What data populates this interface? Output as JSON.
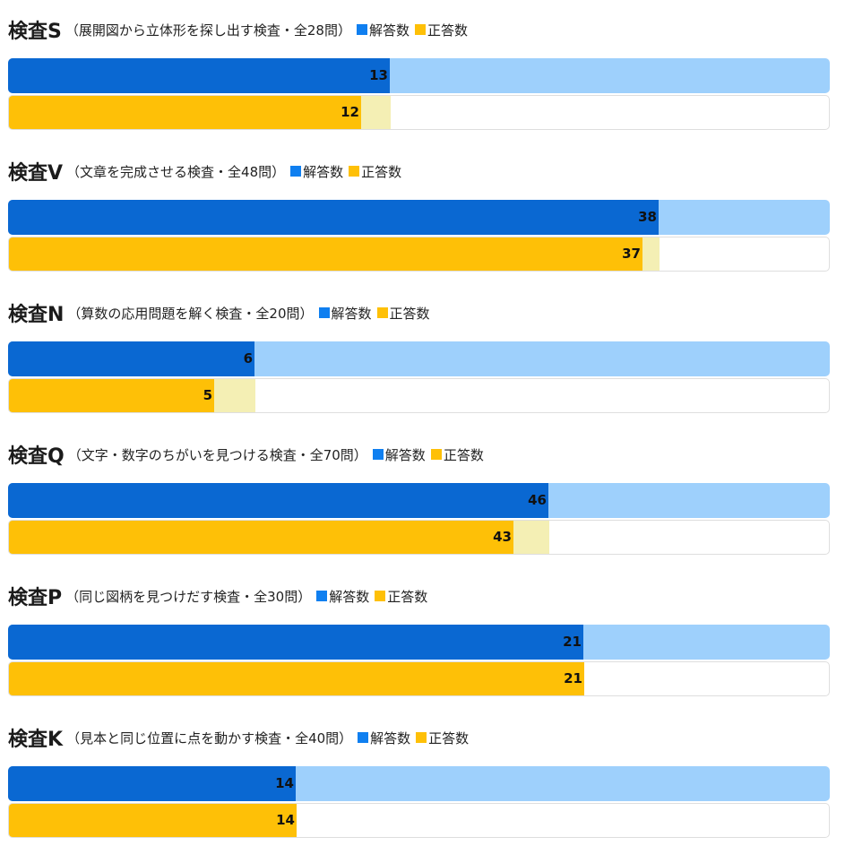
{
  "legend": {
    "answered": "解答数",
    "correct": "正答数"
  },
  "colors": {
    "answered": "#0a68d2",
    "answered_track": "#9ed0fc",
    "correct": "#fec007",
    "correct_gap": "#f4efb4",
    "legend_answered": "#0f7ff0",
    "legend_correct": "#fec007"
  },
  "chart_data": [
    {
      "type": "bar",
      "title": "検査S",
      "subtitle": "（展開図から立体形を探し出す検査・全28問）",
      "total": 28,
      "series": [
        {
          "name": "解答数",
          "values": [
            13
          ]
        },
        {
          "name": "正答数",
          "values": [
            12
          ]
        }
      ]
    },
    {
      "type": "bar",
      "title": "検査V",
      "subtitle": "（文章を完成させる検査・全48問）",
      "total": 48,
      "series": [
        {
          "name": "解答数",
          "values": [
            38
          ]
        },
        {
          "name": "正答数",
          "values": [
            37
          ]
        }
      ]
    },
    {
      "type": "bar",
      "title": "検査N",
      "subtitle": "（算数の応用問題を解く検査・全20問）",
      "total": 20,
      "series": [
        {
          "name": "解答数",
          "values": [
            6
          ]
        },
        {
          "name": "正答数",
          "values": [
            5
          ]
        }
      ]
    },
    {
      "type": "bar",
      "title": "検査Q",
      "subtitle": "（文字・数字のちがいを見つける検査・全70問）",
      "total": 70,
      "series": [
        {
          "name": "解答数",
          "values": [
            46
          ]
        },
        {
          "name": "正答数",
          "values": [
            43
          ]
        }
      ]
    },
    {
      "type": "bar",
      "title": "検査P",
      "subtitle": "（同じ図柄を見つけだす検査・全30問）",
      "total": 30,
      "series": [
        {
          "name": "解答数",
          "values": [
            21
          ]
        },
        {
          "name": "正答数",
          "values": [
            21
          ]
        }
      ]
    },
    {
      "type": "bar",
      "title": "検査K",
      "subtitle": "（見本と同じ位置に点を動かす検査・全40問）",
      "total": 40,
      "series": [
        {
          "name": "解答数",
          "values": [
            14
          ]
        },
        {
          "name": "正答数",
          "values": [
            14
          ]
        }
      ]
    }
  ]
}
